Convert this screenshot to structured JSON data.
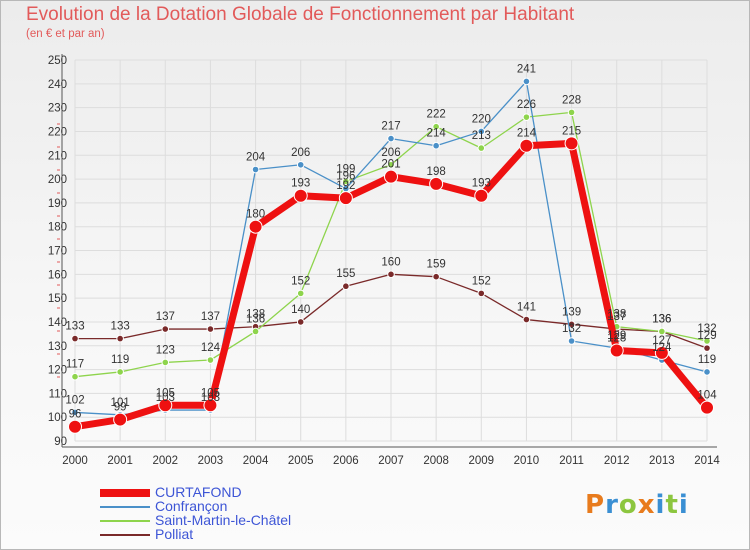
{
  "title": "Evolution de la Dotation Globale de Fonctionnement par Habitant",
  "subtitle": "(en € et par an)",
  "logo": {
    "text": "Proxiti",
    "colors": [
      "#e87b1d",
      "#3a8fd3",
      "#8cc63f",
      "#e87b1d",
      "#3a8fd3",
      "#8cc63f",
      "#3a8fd3"
    ]
  },
  "chart_data": {
    "type": "line",
    "title": "Evolution de la Dotation Globale de Fonctionnement par Habitant",
    "ylabel": "(en € et par an)",
    "x": [
      "2000",
      "2001",
      "2002",
      "2003",
      "2004",
      "2005",
      "2006",
      "2007",
      "2008",
      "2009",
      "2010",
      "2011",
      "2012",
      "2013",
      "2014"
    ],
    "ylim": [
      90,
      250
    ],
    "yticks": [
      90,
      100,
      110,
      120,
      130,
      140,
      150,
      160,
      170,
      180,
      190,
      200,
      210,
      220,
      230,
      240,
      250
    ],
    "series": [
      {
        "name": "Polliat",
        "color": "#7a2a2a",
        "values": [
          133,
          133,
          137,
          137,
          138,
          140,
          155,
          160,
          159,
          152,
          141,
          139,
          137,
          136,
          129
        ],
        "labels": [
          "133",
          "133",
          "137",
          "137",
          "138",
          "140",
          "155",
          "160",
          "159",
          "152",
          "141",
          "139",
          "137",
          "136",
          "129"
        ]
      },
      {
        "name": "Saint-Martin-le-Châtel",
        "color": "#8ed44c",
        "values": [
          117,
          119,
          123,
          124,
          136,
          152,
          199,
          206,
          222,
          213,
          226,
          228,
          138,
          136,
          132
        ],
        "labels": [
          "117",
          "119",
          "123",
          "124",
          "136",
          "152",
          "199",
          "206",
          "222",
          "213",
          "226",
          "228",
          "138",
          "136",
          "132"
        ]
      },
      {
        "name": "Confrançon",
        "color": "#4a90c8",
        "values": [
          102,
          101,
          103,
          103,
          204,
          206,
          196,
          217,
          214,
          220,
          241,
          132,
          129,
          124,
          119
        ],
        "labels": [
          "102",
          "101",
          "103",
          "103",
          "204",
          "206",
          "196",
          "217",
          "214",
          "220",
          "241",
          "132",
          "129",
          "124",
          "119"
        ]
      },
      {
        "name": "CURTAFOND",
        "color": "#ee1111",
        "values": [
          96,
          99,
          105,
          105,
          180,
          193,
          192,
          201,
          198,
          193,
          214,
          215,
          128,
          127,
          104
        ],
        "labels": [
          "96",
          "99",
          "105",
          "105",
          "180",
          "193",
          "192",
          "201",
          "198",
          "193",
          "214",
          "215",
          "128",
          "127",
          "104"
        ]
      }
    ],
    "legend": [
      "CURTAFOND",
      "Confrançon",
      "Saint-Martin-le-Châtel",
      "Polliat"
    ],
    "legend_position": "bottom-left"
  }
}
